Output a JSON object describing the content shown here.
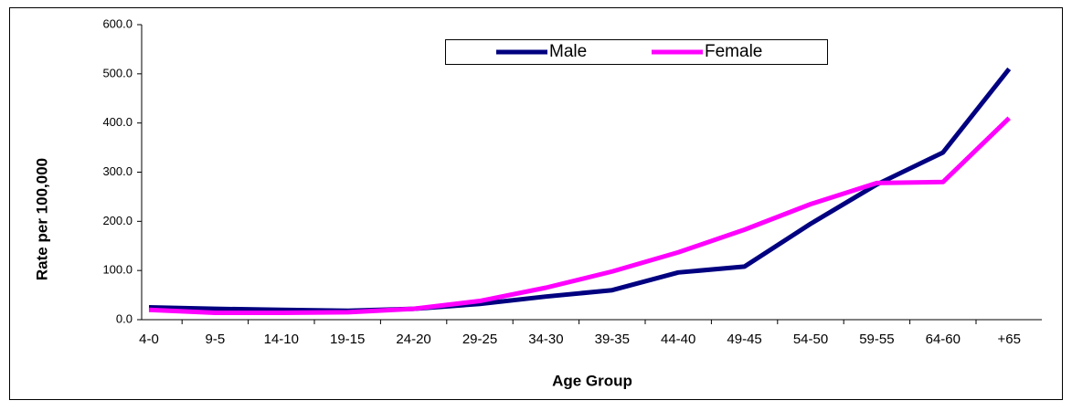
{
  "chart_data": {
    "type": "line",
    "xlabel": "Age Group",
    "ylabel": "Rate per 100,000",
    "categories": [
      "4-0",
      "9-5",
      "14-10",
      "19-15",
      "24-20",
      "29-25",
      "34-30",
      "39-35",
      "44-40",
      "49-45",
      "54-50",
      "59-55",
      "64-60",
      "+65"
    ],
    "series": [
      {
        "name": "Male",
        "color": "#000080",
        "values": [
          25,
          22,
          20,
          18,
          22,
          32,
          47,
          60,
          96,
          108,
          195,
          275,
          340,
          510
        ]
      },
      {
        "name": "Female",
        "color": "#ff00ff",
        "values": [
          20,
          14,
          14,
          15,
          22,
          38,
          65,
          98,
          137,
          183,
          235,
          278,
          280,
          410
        ]
      }
    ],
    "ylim": [
      0,
      600
    ],
    "yticks": [
      {
        "value": 0,
        "label": "0.0"
      },
      {
        "value": 100,
        "label": "100.0"
      },
      {
        "value": 200,
        "label": "200.0"
      },
      {
        "value": 300,
        "label": "300.0"
      },
      {
        "value": 400,
        "label": "400.0"
      },
      {
        "value": 500,
        "label": "500.0"
      },
      {
        "value": 600,
        "label": "600.0"
      }
    ],
    "legend": "top"
  }
}
